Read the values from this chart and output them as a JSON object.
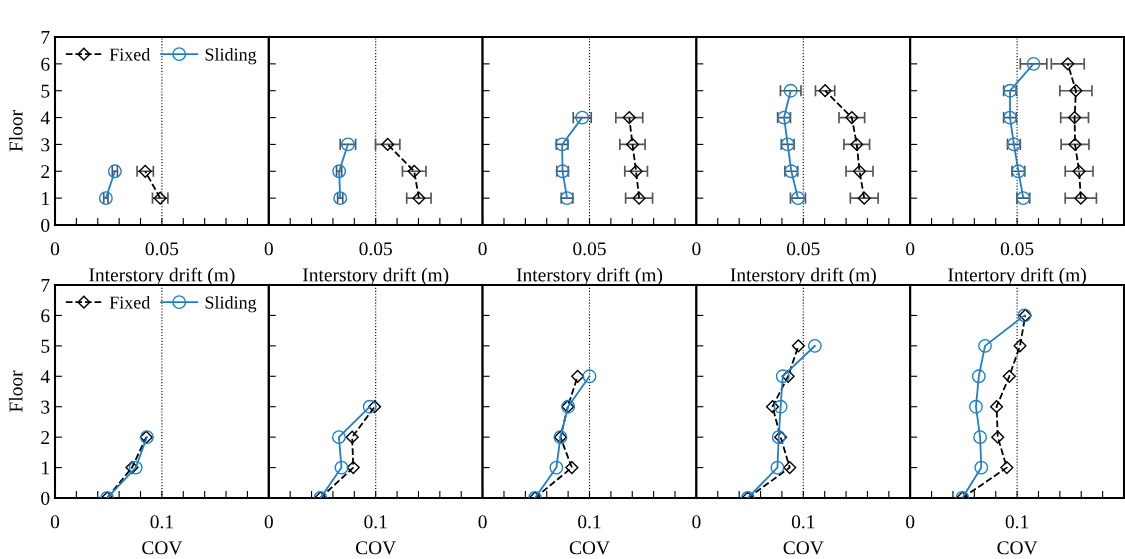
{
  "chart_data": [
    {
      "type": "line",
      "xlabel": "Interstory drift (m)",
      "ylabel": "Floor",
      "xlim": [
        0,
        0.1
      ],
      "ylim": [
        0,
        7
      ],
      "xticks": [
        0,
        {
          "value": 0.01,
          "label": null
        },
        {
          "value": 0.02,
          "label": null
        },
        {
          "value": 0.03,
          "label": null
        },
        {
          "value": 0.04,
          "label": null
        },
        0.05,
        {
          "value": 0.06,
          "label": null
        },
        {
          "value": 0.07,
          "label": null
        },
        {
          "value": 0.08,
          "label": null
        },
        {
          "value": 0.09,
          "label": null
        }
      ],
      "yticks": [
        0,
        1,
        2,
        3,
        4,
        5,
        6,
        7
      ],
      "ref_lines": [
        {
          "axis": "x",
          "value": 0.05,
          "color": "#000000",
          "line_style": "dotted"
        }
      ],
      "legend": "top left",
      "series": [
        {
          "name": "Fixed",
          "color": "#000000",
          "marker": "diamond",
          "line_style": "dashed",
          "x": [
            0.0492,
            0.0422
          ],
          "values": [
            1,
            2
          ],
          "xerrors": [
            0.0036,
            0.0038
          ]
        },
        {
          "name": "Sliding",
          "color": "#1f7fc8",
          "marker": "circle",
          "line_style": "solid",
          "x": [
            0.0238,
            0.028
          ],
          "values": [
            1,
            2
          ],
          "xerrors": [
            0.001,
            0.0012
          ]
        }
      ]
    },
    {
      "type": "line",
      "xlabel": "Interstory drift (m)",
      "xlim": [
        0,
        0.1
      ],
      "ylim": [
        0,
        7
      ],
      "xticks": [
        0,
        {
          "value": 0.01,
          "label": null
        },
        {
          "value": 0.02,
          "label": null
        },
        {
          "value": 0.03,
          "label": null
        },
        {
          "value": 0.04,
          "label": null
        },
        0.05,
        {
          "value": 0.06,
          "label": null
        },
        {
          "value": 0.07,
          "label": null
        },
        {
          "value": 0.08,
          "label": null
        },
        {
          "value": 0.09,
          "label": null
        }
      ],
      "yticks": [
        0,
        1,
        2,
        3,
        4,
        5,
        6,
        7
      ],
      "tick_labels": "x",
      "ref_lines": [
        {
          "axis": "x",
          "value": 0.05,
          "color": "#000000",
          "line_style": "dotted"
        }
      ],
      "series": [
        {
          "color": "#000000",
          "marker": "diamond",
          "line_style": "dashed",
          "x": [
            0.0702,
            0.068,
            0.0556
          ],
          "values": [
            1,
            2,
            3
          ],
          "xerrors": [
            0.0057,
            0.0055,
            0.0057
          ]
        },
        {
          "color": "#1f7fc8",
          "marker": "circle",
          "line_style": "solid",
          "x": [
            0.0334,
            0.0329,
            0.037
          ],
          "values": [
            1,
            2,
            3
          ],
          "xerrors": [
            0.0012,
            0.0012,
            0.0036
          ]
        }
      ]
    },
    {
      "type": "line",
      "xlabel": "Interstory drift (m)",
      "xlim": [
        0,
        0.1
      ],
      "ylim": [
        0,
        7
      ],
      "xticks": [
        0,
        {
          "value": 0.01,
          "label": null
        },
        {
          "value": 0.02,
          "label": null
        },
        {
          "value": 0.03,
          "label": null
        },
        {
          "value": 0.04,
          "label": null
        },
        0.05,
        {
          "value": 0.06,
          "label": null
        },
        {
          "value": 0.07,
          "label": null
        },
        {
          "value": 0.08,
          "label": null
        },
        {
          "value": 0.09,
          "label": null
        }
      ],
      "yticks": [
        0,
        1,
        2,
        3,
        4,
        5,
        6,
        7
      ],
      "tick_labels": "x",
      "ref_lines": [
        {
          "axis": "x",
          "value": 0.05,
          "color": "#000000",
          "line_style": "dotted"
        }
      ],
      "series": [
        {
          "color": "#000000",
          "marker": "diamond",
          "line_style": "dashed",
          "x": [
            0.0732,
            0.0718,
            0.0701,
            0.0686
          ],
          "values": [
            1,
            2,
            3,
            4
          ],
          "xerrors": [
            0.0063,
            0.0053,
            0.0059,
            0.0063
          ]
        },
        {
          "color": "#1f7fc8",
          "marker": "circle",
          "line_style": "solid",
          "x": [
            0.0395,
            0.0374,
            0.0372,
            0.0466
          ],
          "values": [
            1,
            2,
            3,
            4
          ],
          "xerrors": [
            0.0027,
            0.0027,
            0.0027,
            0.0042
          ]
        }
      ]
    },
    {
      "type": "line",
      "xlabel": "Interstory drift (m)",
      "xlim": [
        0,
        0.1
      ],
      "ylim": [
        0,
        7
      ],
      "xticks": [
        0,
        {
          "value": 0.01,
          "label": null
        },
        {
          "value": 0.02,
          "label": null
        },
        {
          "value": 0.03,
          "label": null
        },
        {
          "value": 0.04,
          "label": null
        },
        0.05,
        {
          "value": 0.06,
          "label": null
        },
        {
          "value": 0.07,
          "label": null
        },
        {
          "value": 0.08,
          "label": null
        },
        {
          "value": 0.09,
          "label": null
        }
      ],
      "yticks": [
        0,
        1,
        2,
        3,
        4,
        5,
        6,
        7
      ],
      "tick_labels": "x",
      "ref_lines": [
        {
          "axis": "x",
          "value": 0.05,
          "color": "#000000",
          "line_style": "dotted"
        }
      ],
      "series": [
        {
          "color": "#000000",
          "marker": "diamond",
          "line_style": "dashed",
          "x": [
            0.0785,
            0.0763,
            0.075,
            0.0727,
            0.0602
          ],
          "values": [
            1,
            2,
            3,
            4,
            5
          ],
          "xerrors": [
            0.0065,
            0.0063,
            0.006,
            0.006,
            0.0045
          ]
        },
        {
          "color": "#1f7fc8",
          "marker": "circle",
          "line_style": "solid",
          "x": [
            0.0475,
            0.0444,
            0.0427,
            0.041,
            0.0441
          ],
          "values": [
            1,
            2,
            3,
            4,
            5
          ],
          "xerrors": [
            0.0035,
            0.003,
            0.003,
            0.003,
            0.0048
          ]
        }
      ]
    },
    {
      "type": "line",
      "xlabel": "Intertory drift (m)",
      "xlim": [
        0,
        0.1
      ],
      "ylim": [
        0,
        7
      ],
      "xticks": [
        0,
        {
          "value": 0.01,
          "label": null
        },
        {
          "value": 0.02,
          "label": null
        },
        {
          "value": 0.03,
          "label": null
        },
        {
          "value": 0.04,
          "label": null
        },
        0.05,
        {
          "value": 0.06,
          "label": null
        },
        {
          "value": 0.07,
          "label": null
        },
        {
          "value": 0.08,
          "label": null
        },
        {
          "value": 0.09,
          "label": null
        }
      ],
      "yticks": [
        0,
        1,
        2,
        3,
        4,
        5,
        6,
        7
      ],
      "tick_labels": "x",
      "ref_lines": [
        {
          "axis": "x",
          "value": 0.05,
          "color": "#000000",
          "line_style": "dotted"
        }
      ],
      "series": [
        {
          "color": "#000000",
          "marker": "diamond",
          "line_style": "dashed",
          "x": [
            0.0798,
            0.079,
            0.0771,
            0.0769,
            0.0775,
            0.0737
          ],
          "values": [
            1,
            2,
            3,
            4,
            5,
            6
          ],
          "xerrors": [
            0.0073,
            0.0065,
            0.0065,
            0.0065,
            0.0075,
            0.0077
          ]
        },
        {
          "color": "#1f7fc8",
          "marker": "circle",
          "line_style": "solid",
          "x": [
            0.0529,
            0.0506,
            0.0485,
            0.0467,
            0.0467,
            0.0577
          ],
          "values": [
            1,
            2,
            3,
            4,
            5,
            6
          ],
          "xerrors": [
            0.003,
            0.003,
            0.003,
            0.003,
            0.003,
            0.0062
          ]
        }
      ]
    },
    {
      "type": "line",
      "xlabel": "COV",
      "ylabel": "Floor",
      "xlim": [
        0,
        0.2
      ],
      "ylim": [
        0,
        7
      ],
      "xticks": [
        0,
        {
          "value": 0.02,
          "label": null
        },
        {
          "value": 0.04,
          "label": null
        },
        {
          "value": 0.06,
          "label": null
        },
        {
          "value": 0.08,
          "label": null
        },
        0.1,
        {
          "value": 0.12,
          "label": null
        },
        {
          "value": 0.14,
          "label": null
        },
        {
          "value": 0.16,
          "label": null
        },
        {
          "value": 0.18,
          "label": null
        }
      ],
      "yticks": [
        0,
        1,
        2,
        3,
        4,
        5,
        6,
        7
      ],
      "ref_lines": [
        {
          "axis": "x",
          "value": 0.1,
          "color": "#000000",
          "line_style": "dotted"
        }
      ],
      "legend": "top left",
      "series": [
        {
          "name": "Fixed",
          "color": "#000000",
          "marker": "diamond",
          "line_style": "dashed",
          "x": [
            0.0488,
            0.072,
            0.0854
          ],
          "values": [
            0,
            1,
            2
          ]
        },
        {
          "name": "Sliding",
          "color": "#1f7fc8",
          "marker": "circle",
          "line_style": "solid",
          "x": [
            0.0488,
            0.0755,
            0.086
          ],
          "values": [
            0,
            1,
            2
          ]
        }
      ]
    },
    {
      "type": "line",
      "xlabel": "COV",
      "xlim": [
        0,
        0.2
      ],
      "ylim": [
        0,
        7
      ],
      "xticks": [
        0,
        {
          "value": 0.02,
          "label": null
        },
        {
          "value": 0.04,
          "label": null
        },
        {
          "value": 0.06,
          "label": null
        },
        {
          "value": 0.08,
          "label": null
        },
        0.1,
        {
          "value": 0.12,
          "label": null
        },
        {
          "value": 0.14,
          "label": null
        },
        {
          "value": 0.16,
          "label": null
        },
        {
          "value": 0.18,
          "label": null
        }
      ],
      "yticks": [
        0,
        1,
        2,
        3,
        4,
        5,
        6,
        7
      ],
      "tick_labels": "x",
      "ref_lines": [
        {
          "axis": "x",
          "value": 0.1,
          "color": "#000000",
          "line_style": "dotted"
        }
      ],
      "series": [
        {
          "color": "#000000",
          "marker": "diamond",
          "line_style": "dashed",
          "x": [
            0.0483,
            0.079,
            0.078,
            0.099
          ],
          "values": [
            0,
            1,
            2,
            3
          ]
        },
        {
          "color": "#1f7fc8",
          "marker": "circle",
          "line_style": "solid",
          "x": [
            0.0483,
            0.068,
            0.0656,
            0.0944
          ],
          "values": [
            0,
            1,
            2,
            3
          ]
        }
      ]
    },
    {
      "type": "line",
      "xlabel": "COV",
      "xlim": [
        0,
        0.2
      ],
      "ylim": [
        0,
        7
      ],
      "xticks": [
        0,
        {
          "value": 0.02,
          "label": null
        },
        {
          "value": 0.04,
          "label": null
        },
        {
          "value": 0.06,
          "label": null
        },
        {
          "value": 0.08,
          "label": null
        },
        0.1,
        {
          "value": 0.12,
          "label": null
        },
        {
          "value": 0.14,
          "label": null
        },
        {
          "value": 0.16,
          "label": null
        },
        {
          "value": 0.18,
          "label": null
        }
      ],
      "yticks": [
        0,
        1,
        2,
        3,
        4,
        5,
        6,
        7
      ],
      "tick_labels": "x",
      "ref_lines": [
        {
          "axis": "x",
          "value": 0.1,
          "color": "#000000",
          "line_style": "dotted"
        }
      ],
      "series": [
        {
          "color": "#000000",
          "marker": "diamond",
          "line_style": "dashed",
          "x": [
            0.049,
            0.0835,
            0.0728,
            0.0797,
            0.0889
          ],
          "values": [
            0,
            1,
            2,
            3,
            4
          ]
        },
        {
          "color": "#1f7fc8",
          "marker": "circle",
          "line_style": "solid",
          "x": [
            0.049,
            0.069,
            0.0728,
            0.08,
            0.1
          ],
          "values": [
            0,
            1,
            2,
            3,
            4
          ]
        }
      ]
    },
    {
      "type": "line",
      "xlabel": "COV",
      "xlim": [
        0,
        0.2
      ],
      "ylim": [
        0,
        7
      ],
      "xticks": [
        0,
        {
          "value": 0.02,
          "label": null
        },
        {
          "value": 0.04,
          "label": null
        },
        {
          "value": 0.06,
          "label": null
        },
        {
          "value": 0.08,
          "label": null
        },
        0.1,
        {
          "value": 0.12,
          "label": null
        },
        {
          "value": 0.14,
          "label": null
        },
        {
          "value": 0.16,
          "label": null
        },
        {
          "value": 0.18,
          "label": null
        }
      ],
      "yticks": [
        0,
        1,
        2,
        3,
        4,
        5,
        6,
        7
      ],
      "tick_labels": "x",
      "ref_lines": [
        {
          "axis": "x",
          "value": 0.1,
          "color": "#000000",
          "line_style": "dotted"
        }
      ],
      "series": [
        {
          "color": "#000000",
          "marker": "diamond",
          "line_style": "dashed",
          "x": [
            0.0481,
            0.0873,
            0.0788,
            0.0712,
            0.0858,
            0.0954
          ],
          "values": [
            0,
            1,
            2,
            3,
            4,
            5
          ]
        },
        {
          "color": "#1f7fc8",
          "marker": "circle",
          "line_style": "solid",
          "x": [
            0.0481,
            0.0758,
            0.077,
            0.0788,
            0.0808,
            0.1108
          ],
          "values": [
            0,
            1,
            2,
            3,
            4,
            5
          ]
        }
      ]
    },
    {
      "type": "line",
      "xlabel": "COV",
      "xlim": [
        0,
        0.2
      ],
      "ylim": [
        0,
        7
      ],
      "xticks": [
        0,
        {
          "value": 0.02,
          "label": null
        },
        {
          "value": 0.04,
          "label": null
        },
        {
          "value": 0.06,
          "label": null
        },
        {
          "value": 0.08,
          "label": null
        },
        0.1,
        {
          "value": 0.12,
          "label": null
        },
        {
          "value": 0.14,
          "label": null
        },
        {
          "value": 0.16,
          "label": null
        },
        {
          "value": 0.18,
          "label": null
        }
      ],
      "yticks": [
        0,
        1,
        2,
        3,
        4,
        5,
        6,
        7
      ],
      "tick_labels": "x",
      "ref_lines": [
        {
          "axis": "x",
          "value": 0.1,
          "color": "#000000",
          "line_style": "dotted"
        }
      ],
      "series": [
        {
          "color": "#000000",
          "marker": "diamond",
          "line_style": "dashed",
          "x": [
            0.0488,
            0.0904,
            0.0819,
            0.0808,
            0.0927,
            0.1027,
            0.1077
          ],
          "values": [
            0,
            1,
            2,
            3,
            4,
            5,
            6
          ]
        },
        {
          "color": "#1f7fc8",
          "marker": "circle",
          "line_style": "solid",
          "x": [
            0.0488,
            0.0665,
            0.0654,
            0.0615,
            0.0642,
            0.07,
            0.1069
          ],
          "values": [
            0,
            1,
            2,
            3,
            4,
            5,
            6
          ]
        }
      ]
    }
  ]
}
